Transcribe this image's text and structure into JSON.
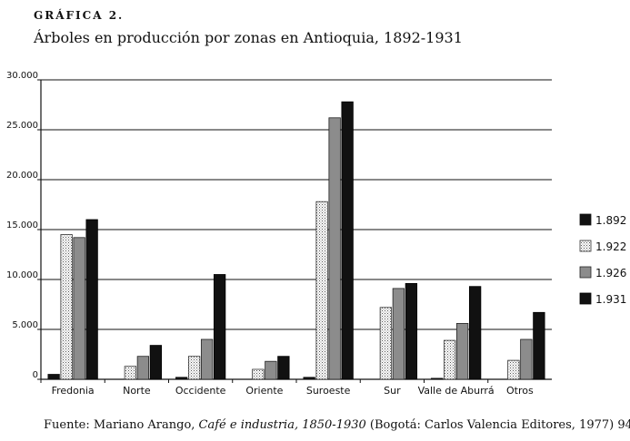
{
  "header": {
    "label": "GRÁFICA 2.",
    "title": "Árboles en producción por zonas en Antioquia, 1892-1931"
  },
  "source": {
    "prefix": "Fuente: Mariano Arango, ",
    "italic1": "Café e industria, 1850-1930",
    "rest": " (Bogotá: Carlos Valencia Editores, 1977) 94."
  },
  "chart_data": {
    "type": "bar",
    "title": "Árboles en producción por zonas en Antioquia, 1892-1931",
    "xlabel": "",
    "ylabel": "",
    "ylim": [
      0,
      30000
    ],
    "yticks": [
      0,
      5000,
      10000,
      15000,
      20000,
      25000,
      30000
    ],
    "ytick_labels": [
      "0",
      "5.000",
      "10.000",
      "15.000",
      "20.000",
      "25.000",
      "30.000"
    ],
    "grid": true,
    "legend_position": "right",
    "categories": [
      "Fredonia",
      "Norte",
      "Occidente",
      "Oriente",
      "Suroeste",
      "Sur",
      "Valle de Aburrá",
      "Otros"
    ],
    "series": [
      {
        "name": "1.892",
        "fill": "solid-black",
        "values": [
          500,
          0,
          200,
          0,
          200,
          0,
          100,
          0
        ]
      },
      {
        "name": "1.922",
        "fill": "dotted",
        "values": [
          14500,
          1300,
          2300,
          1000,
          17800,
          7200,
          3900,
          1900
        ]
      },
      {
        "name": "1.926",
        "fill": "gray",
        "values": [
          14200,
          2300,
          4000,
          1800,
          26200,
          9100,
          5600,
          4000
        ]
      },
      {
        "name": "1.931",
        "fill": "black-outlined",
        "values": [
          16000,
          3400,
          10500,
          2300,
          27800,
          9600,
          9300,
          6700
        ]
      }
    ]
  }
}
